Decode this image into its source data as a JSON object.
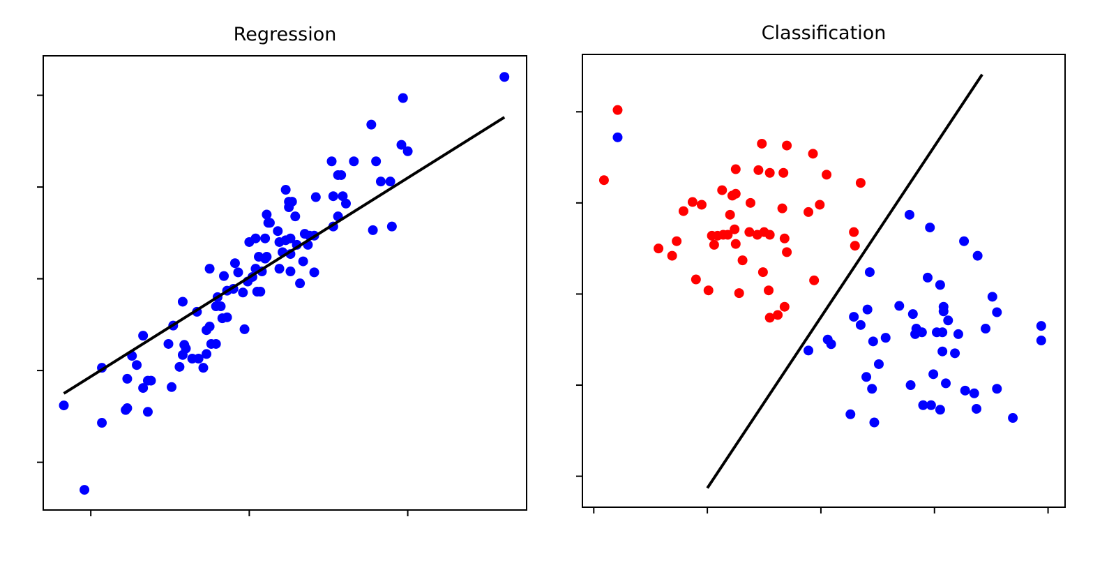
{
  "chart_data": [
    {
      "type": "scatter",
      "title": "Regression",
      "xlabel": "",
      "ylabel": "",
      "xlim": [
        -0.3,
        2.75
      ],
      "ylim": [
        -0.52,
        4.43
      ],
      "xticks": [
        0,
        1,
        2
      ],
      "yticks": [
        0,
        1,
        2,
        3,
        4
      ],
      "tick_labels_shown": false,
      "grid": false,
      "point_color": "#0000ff",
      "line_color": "#000000",
      "points": [
        [
          -0.17,
          0.62
        ],
        [
          -0.04,
          -0.3
        ],
        [
          0.07,
          0.43
        ],
        [
          0.07,
          1.03
        ],
        [
          0.22,
          0.57
        ],
        [
          0.23,
          0.59
        ],
        [
          0.23,
          0.91
        ],
        [
          0.26,
          1.16
        ],
        [
          0.29,
          1.06
        ],
        [
          0.33,
          1.38
        ],
        [
          0.33,
          0.81
        ],
        [
          0.36,
          0.55
        ],
        [
          0.36,
          0.89
        ],
        [
          0.38,
          0.89
        ],
        [
          0.49,
          1.29
        ],
        [
          0.51,
          0.82
        ],
        [
          0.52,
          1.49
        ],
        [
          0.56,
          1.04
        ],
        [
          0.58,
          1.75
        ],
        [
          0.58,
          1.17
        ],
        [
          0.59,
          1.28
        ],
        [
          0.6,
          1.24
        ],
        [
          0.64,
          1.13
        ],
        [
          0.67,
          1.64
        ],
        [
          0.68,
          1.13
        ],
        [
          0.71,
          1.03
        ],
        [
          0.73,
          1.18
        ],
        [
          0.73,
          1.44
        ],
        [
          0.75,
          2.11
        ],
        [
          0.75,
          1.48
        ],
        [
          0.76,
          1.29
        ],
        [
          0.79,
          1.29
        ],
        [
          0.79,
          1.7
        ],
        [
          0.8,
          1.8
        ],
        [
          0.82,
          1.7
        ],
        [
          0.83,
          1.57
        ],
        [
          0.84,
          2.03
        ],
        [
          0.86,
          1.58
        ],
        [
          0.86,
          1.87
        ],
        [
          0.9,
          1.89
        ],
        [
          0.91,
          2.17
        ],
        [
          0.93,
          2.07
        ],
        [
          0.96,
          1.85
        ],
        [
          0.97,
          1.45
        ],
        [
          0.99,
          1.97
        ],
        [
          1.0,
          2.4
        ],
        [
          1.02,
          2.02
        ],
        [
          1.04,
          2.11
        ],
        [
          1.04,
          2.44
        ],
        [
          1.05,
          1.86
        ],
        [
          1.07,
          1.86
        ],
        [
          1.06,
          2.24
        ],
        [
          1.08,
          2.08
        ],
        [
          1.1,
          2.44
        ],
        [
          1.1,
          2.22
        ],
        [
          1.11,
          2.24
        ],
        [
          1.11,
          2.7
        ],
        [
          1.12,
          2.61
        ],
        [
          1.13,
          2.61
        ],
        [
          1.18,
          2.52
        ],
        [
          1.19,
          2.11
        ],
        [
          1.19,
          2.4
        ],
        [
          1.21,
          2.29
        ],
        [
          1.23,
          2.97
        ],
        [
          1.23,
          2.42
        ],
        [
          1.25,
          2.84
        ],
        [
          1.25,
          2.78
        ],
        [
          1.26,
          2.44
        ],
        [
          1.26,
          2.08
        ],
        [
          1.26,
          2.27
        ],
        [
          1.27,
          2.84
        ],
        [
          1.29,
          2.68
        ],
        [
          1.3,
          2.37
        ],
        [
          1.32,
          1.95
        ],
        [
          1.34,
          2.19
        ],
        [
          1.35,
          2.49
        ],
        [
          1.37,
          2.37
        ],
        [
          1.38,
          2.47
        ],
        [
          1.41,
          2.07
        ],
        [
          1.41,
          2.47
        ],
        [
          1.42,
          2.89
        ],
        [
          1.52,
          3.28
        ],
        [
          1.53,
          2.9
        ],
        [
          1.53,
          2.57
        ],
        [
          1.56,
          2.68
        ],
        [
          1.56,
          3.13
        ],
        [
          1.58,
          3.13
        ],
        [
          1.59,
          2.9
        ],
        [
          1.61,
          2.82
        ],
        [
          1.66,
          3.28
        ],
        [
          1.77,
          3.68
        ],
        [
          1.78,
          2.53
        ],
        [
          1.8,
          3.28
        ],
        [
          1.83,
          3.06
        ],
        [
          1.89,
          3.06
        ],
        [
          1.9,
          2.57
        ],
        [
          1.96,
          3.46
        ],
        [
          1.97,
          3.97
        ],
        [
          2.0,
          3.39
        ],
        [
          2.61,
          4.2
        ]
      ],
      "fit_line": [
        [
          -0.17,
          0.75
        ],
        [
          2.61,
          3.76
        ]
      ]
    },
    {
      "type": "scatter",
      "title": "Classification",
      "xlabel": "",
      "ylabel": "",
      "xlim": [
        -0.1,
        4.15
      ],
      "ylim": [
        -0.34,
        4.63
      ],
      "xticks": [
        0,
        1,
        2,
        3,
        4
      ],
      "yticks": [
        0,
        1,
        2,
        3,
        4
      ],
      "tick_labels_shown": false,
      "grid": false,
      "line_color": "#000000",
      "series": [
        {
          "color": "#ff0000",
          "points": [
            [
              0.21,
              4.02
            ],
            [
              0.09,
              3.25
            ],
            [
              0.57,
              2.5
            ],
            [
              0.69,
              2.42
            ],
            [
              0.73,
              2.58
            ],
            [
              0.79,
              2.91
            ],
            [
              0.87,
              3.01
            ],
            [
              0.9,
              2.16
            ],
            [
              0.95,
              2.98
            ],
            [
              1.01,
              2.04
            ],
            [
              1.04,
              2.64
            ],
            [
              1.06,
              2.54
            ],
            [
              1.09,
              2.64
            ],
            [
              1.13,
              3.14
            ],
            [
              1.14,
              2.65
            ],
            [
              1.18,
              2.65
            ],
            [
              1.2,
              2.87
            ],
            [
              1.22,
              3.08
            ],
            [
              1.24,
              2.71
            ],
            [
              1.25,
              2.55
            ],
            [
              1.25,
              3.37
            ],
            [
              1.25,
              3.1
            ],
            [
              1.28,
              2.01
            ],
            [
              1.31,
              2.37
            ],
            [
              1.38,
              3.0
            ],
            [
              1.37,
              2.68
            ],
            [
              1.44,
              2.65
            ],
            [
              1.45,
              3.36
            ],
            [
              1.48,
              3.65
            ],
            [
              1.49,
              2.24
            ],
            [
              1.5,
              2.68
            ],
            [
              1.54,
              2.04
            ],
            [
              1.55,
              1.74
            ],
            [
              1.55,
              3.33
            ],
            [
              1.55,
              2.65
            ],
            [
              1.62,
              1.77
            ],
            [
              1.66,
              2.94
            ],
            [
              1.68,
              2.61
            ],
            [
              1.68,
              1.86
            ],
            [
              1.67,
              3.33
            ],
            [
              1.7,
              3.63
            ],
            [
              1.7,
              2.46
            ],
            [
              1.89,
              2.9
            ],
            [
              1.93,
              3.54
            ],
            [
              1.94,
              2.15
            ],
            [
              1.99,
              2.98
            ],
            [
              2.05,
              3.31
            ],
            [
              2.29,
              2.68
            ],
            [
              2.3,
              2.53
            ],
            [
              2.35,
              3.22
            ]
          ]
        },
        {
          "color": "#0000ff",
          "points": [
            [
              0.21,
              3.72
            ],
            [
              1.89,
              1.38
            ],
            [
              2.06,
              1.5
            ],
            [
              2.09,
              1.45
            ],
            [
              2.26,
              0.68
            ],
            [
              2.29,
              1.75
            ],
            [
              2.35,
              1.66
            ],
            [
              2.4,
              1.09
            ],
            [
              2.41,
              1.83
            ],
            [
              2.43,
              2.24
            ],
            [
              2.45,
              0.96
            ],
            [
              2.46,
              1.48
            ],
            [
              2.47,
              0.59
            ],
            [
              2.51,
              1.23
            ],
            [
              2.57,
              1.52
            ],
            [
              2.69,
              1.87
            ],
            [
              2.78,
              2.87
            ],
            [
              2.79,
              1.0
            ],
            [
              2.81,
              1.78
            ],
            [
              2.83,
              1.56
            ],
            [
              2.84,
              1.62
            ],
            [
              2.89,
              1.58
            ],
            [
              2.9,
              0.78
            ],
            [
              2.94,
              2.18
            ],
            [
              2.96,
              2.73
            ],
            [
              2.97,
              0.78
            ],
            [
              2.99,
              1.12
            ],
            [
              3.02,
              1.58
            ],
            [
              3.05,
              0.73
            ],
            [
              3.05,
              2.1
            ],
            [
              3.07,
              1.58
            ],
            [
              3.07,
              1.37
            ],
            [
              3.08,
              1.86
            ],
            [
              3.08,
              1.81
            ],
            [
              3.1,
              1.02
            ],
            [
              3.12,
              1.71
            ],
            [
              3.18,
              1.35
            ],
            [
              3.21,
              1.56
            ],
            [
              3.26,
              2.58
            ],
            [
              3.27,
              0.94
            ],
            [
              3.35,
              0.91
            ],
            [
              3.37,
              0.74
            ],
            [
              3.38,
              2.42
            ],
            [
              3.45,
              1.62
            ],
            [
              3.51,
              1.97
            ],
            [
              3.55,
              1.8
            ],
            [
              3.55,
              0.96
            ],
            [
              3.69,
              0.64
            ],
            [
              3.94,
              1.65
            ],
            [
              3.94,
              1.49
            ]
          ]
        }
      ],
      "decision_line": [
        [
          1.0,
          -0.13
        ],
        [
          3.42,
          4.41
        ]
      ]
    }
  ]
}
